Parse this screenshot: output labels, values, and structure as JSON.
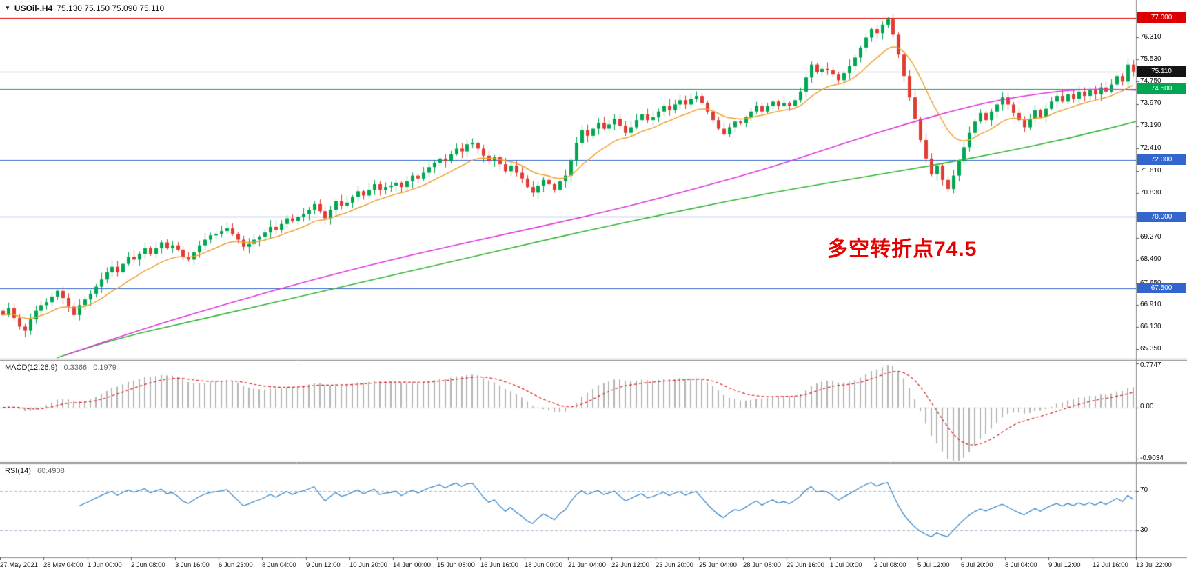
{
  "header": {
    "dropdown_icon": "▼",
    "symbol_label": "USOil-,H4",
    "ohlc_label": "75.130 75.150 75.090 75.110"
  },
  "panels": {
    "macd": {
      "label": "MACD(12,26,9)",
      "value_main": "0.3366",
      "value_signal": "0.1979"
    },
    "rsi": {
      "label": "RSI(14)",
      "value": "60.4908"
    }
  },
  "chart_data": {
    "type": "candlestick",
    "symbol": "USOil-",
    "timeframe": "H4",
    "last_ohlc": {
      "open": 75.13,
      "high": 75.15,
      "low": 75.09,
      "close": 75.11
    },
    "annotation": {
      "text": "多空转折点74.5",
      "color": "#e60000",
      "price": 69.0,
      "x_frac": 0.728
    },
    "price_scale": {
      "max": 77.62,
      "min": 65.02
    },
    "first_open": 66.7,
    "closes": [
      66.55,
      66.8,
      66.45,
      66.15,
      66.0,
      66.4,
      66.7,
      66.9,
      67.0,
      67.2,
      67.4,
      67.15,
      66.85,
      66.55,
      66.9,
      67.1,
      67.3,
      67.55,
      67.8,
      68.05,
      68.25,
      68.05,
      68.35,
      68.6,
      68.5,
      68.7,
      68.9,
      68.7,
      68.9,
      69.1,
      68.9,
      69.0,
      68.85,
      68.6,
      68.5,
      68.75,
      69.0,
      69.2,
      69.35,
      69.4,
      69.5,
      69.6,
      69.4,
      69.2,
      68.95,
      69.05,
      69.2,
      69.3,
      69.45,
      69.65,
      69.55,
      69.75,
      69.95,
      69.85,
      70.0,
      70.1,
      70.25,
      70.45,
      70.2,
      69.95,
      70.25,
      70.55,
      70.4,
      70.5,
      70.7,
      70.9,
      70.75,
      70.95,
      71.15,
      70.95,
      71.05,
      71.1,
      71.2,
      71.05,
      71.25,
      71.45,
      71.35,
      71.55,
      71.75,
      71.9,
      72.05,
      71.95,
      72.2,
      72.4,
      72.3,
      72.55,
      72.6,
      72.4,
      72.15,
      71.95,
      72.1,
      71.85,
      71.6,
      71.8,
      71.55,
      71.35,
      71.05,
      70.85,
      71.1,
      71.3,
      71.15,
      70.95,
      71.25,
      71.45,
      72.0,
      72.6,
      73.05,
      72.85,
      73.1,
      73.3,
      73.1,
      73.25,
      73.45,
      73.2,
      72.95,
      73.15,
      73.4,
      73.6,
      73.4,
      73.5,
      73.7,
      73.9,
      73.75,
      73.95,
      74.1,
      73.95,
      74.15,
      74.25,
      74.0,
      73.7,
      73.4,
      73.1,
      72.9,
      73.15,
      73.35,
      73.3,
      73.5,
      73.7,
      73.9,
      73.7,
      73.9,
      74.05,
      73.9,
      74.0,
      73.9,
      74.1,
      74.4,
      74.9,
      75.35,
      75.1,
      75.2,
      75.15,
      75.0,
      74.8,
      75.05,
      75.3,
      75.6,
      75.95,
      76.3,
      76.6,
      76.45,
      76.75,
      76.95,
      76.4,
      75.7,
      74.95,
      74.2,
      73.45,
      72.7,
      72.05,
      71.5,
      71.8,
      71.3,
      70.98,
      71.45,
      71.95,
      72.45,
      72.95,
      73.35,
      73.65,
      73.4,
      73.7,
      73.95,
      74.2,
      73.95,
      73.65,
      73.4,
      73.15,
      73.45,
      73.75,
      73.5,
      73.8,
      74.05,
      74.25,
      74.05,
      74.3,
      74.15,
      74.4,
      74.25,
      74.45,
      74.3,
      74.55,
      74.4,
      74.65,
      74.95,
      74.75,
      75.35,
      75.11
    ],
    "hlines": [
      {
        "price": 77.0,
        "label": "77.000",
        "color": "#dd0000"
      },
      {
        "price": 74.5,
        "label": "74.500",
        "color": "#00a651"
      },
      {
        "price": 72.0,
        "label": "72.000",
        "color": "#3366cc"
      },
      {
        "price": 70.0,
        "label": "70.000",
        "color": "#3366cc"
      },
      {
        "price": 67.5,
        "label": "67.500",
        "color": "#3366cc"
      }
    ],
    "price_line": {
      "price": 75.11,
      "label": "75.110",
      "line_color": "#999999",
      "badge_bg": "#141414"
    },
    "y_ticks": [
      {
        "t": "76.310",
        "v": 76.31
      },
      {
        "t": "75.530",
        "v": 75.53
      },
      {
        "t": "74.750",
        "v": 74.75
      },
      {
        "t": "73.970",
        "v": 73.97
      },
      {
        "t": "73.190",
        "v": 73.19
      },
      {
        "t": "72.410",
        "v": 72.41
      },
      {
        "t": "71.610",
        "v": 71.61
      },
      {
        "t": "70.830",
        "v": 70.83
      },
      {
        "t": "69.270",
        "v": 69.27
      },
      {
        "t": "68.490",
        "v": 68.49
      },
      {
        "t": "67.650",
        "v": 67.65
      },
      {
        "t": "66.910",
        "v": 66.91
      },
      {
        "t": "66.130",
        "v": 66.13
      },
      {
        "t": "65.350",
        "v": 65.35
      }
    ],
    "x_labels": [
      "27 May 2021",
      "28 May 04:00",
      "1 Jun 00:00",
      "2 Jun 08:00",
      "3 Jun 16:00",
      "6 Jun 23:00",
      "8 Jun 04:00",
      "9 Jun 12:00",
      "10 Jun 20:00",
      "14 Jun 00:00",
      "15 Jun 08:00",
      "16 Jun 16:00",
      "18 Jun 00:00",
      "21 Jun 04:00",
      "22 Jun 12:00",
      "23 Jun 20:00",
      "25 Jun 04:00",
      "28 Jun 08:00",
      "29 Jun 16:00",
      "1 Jul 00:00",
      "2 Jul 08:00",
      "5 Jul 12:00",
      "6 Jul 20:00",
      "8 Jul 04:00",
      "9 Jul 12:00",
      "12 Jul 16:00",
      "13 Jul 22:00"
    ],
    "colors": {
      "up": "#00a651",
      "down": "#e03c32",
      "ma_fast": "#f0a030",
      "ma_mid": "#dd33dd",
      "ma_slow": "#33b333",
      "macd_hist": "#b4b4b4",
      "macd_signal": "#dd2222",
      "rsi_line": "#3a87c8",
      "axis_text": "#111111"
    },
    "ma_fast_period": 13,
    "ma_mid_anchors": [
      [
        0.058,
        65.15
      ],
      [
        0.12,
        66.0
      ],
      [
        0.2,
        66.95
      ],
      [
        0.28,
        67.85
      ],
      [
        0.36,
        68.65
      ],
      [
        0.44,
        69.35
      ],
      [
        0.52,
        70.05
      ],
      [
        0.6,
        70.85
      ],
      [
        0.68,
        71.75
      ],
      [
        0.74,
        72.55
      ],
      [
        0.8,
        73.3
      ],
      [
        0.86,
        73.95
      ],
      [
        0.9,
        74.25
      ],
      [
        0.94,
        74.45
      ],
      [
        0.97,
        74.5
      ],
      [
        1.0,
        74.45
      ]
    ],
    "ma_slow_anchors": [
      [
        0.05,
        65.05
      ],
      [
        0.1,
        65.7
      ],
      [
        0.16,
        66.25
      ],
      [
        0.22,
        66.8
      ],
      [
        0.28,
        67.35
      ],
      [
        0.34,
        67.9
      ],
      [
        0.4,
        68.45
      ],
      [
        0.46,
        69.0
      ],
      [
        0.52,
        69.55
      ],
      [
        0.58,
        70.05
      ],
      [
        0.64,
        70.55
      ],
      [
        0.7,
        71.0
      ],
      [
        0.76,
        71.4
      ],
      [
        0.82,
        71.8
      ],
      [
        0.88,
        72.25
      ],
      [
        0.94,
        72.75
      ],
      [
        1.0,
        73.35
      ]
    ],
    "macd": {
      "fast": 12,
      "slow": 26,
      "signal": 9,
      "scale": {
        "max": 0.82,
        "min": -0.96
      },
      "ticks": [
        {
          "t": "0.7747",
          "v": 0.7747
        },
        {
          "t": "0.00",
          "v": 0.0
        },
        {
          "t": "-0.9034",
          "v": -0.9034
        }
      ]
    },
    "rsi": {
      "period": 14,
      "levels": [
        70,
        30
      ],
      "scale": {
        "max": 97,
        "min": 3
      },
      "ticks": [
        {
          "t": "70",
          "v": 70
        },
        {
          "t": "30",
          "v": 30
        }
      ]
    }
  }
}
